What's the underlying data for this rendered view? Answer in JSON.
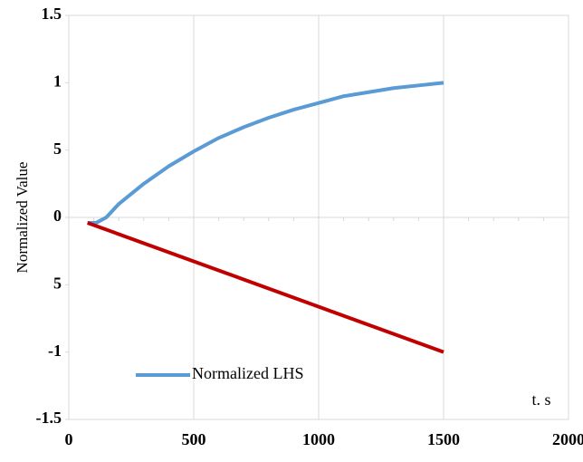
{
  "chart_data": {
    "type": "line",
    "ylabel": "Normalized Value",
    "xlabel": "t. s",
    "xlim": [
      0,
      2000
    ],
    "xticks": [
      0,
      500,
      1000,
      1500,
      2000
    ],
    "ylim": [
      -1.5,
      1.5
    ],
    "yticks": [
      {
        "value": -1.5,
        "label": "-1.5"
      },
      -1,
      {
        "value": -0.5,
        "label": "5"
      },
      0,
      {
        "value": 0.5,
        "label": "5"
      },
      1,
      {
        "value": 1.5,
        "label": "1.5"
      }
    ],
    "grid": true,
    "legend": "lower left",
    "series": [
      {
        "name": "Normalized LHS",
        "color": "#5b9bd5",
        "x": [
          75,
          110,
          150,
          200,
          300,
          400,
          500,
          600,
          700,
          800,
          900,
          1000,
          1100,
          1200,
          1300,
          1400,
          1500
        ],
        "values": [
          -0.04,
          -0.04,
          0.0,
          0.1,
          0.25,
          0.38,
          0.49,
          0.59,
          0.67,
          0.74,
          0.8,
          0.85,
          0.9,
          0.93,
          0.96,
          0.98,
          1.0
        ]
      },
      {
        "color": "#c00000",
        "x": [
          75,
          1500
        ],
        "values": [
          -0.04,
          -1.0
        ]
      }
    ]
  }
}
